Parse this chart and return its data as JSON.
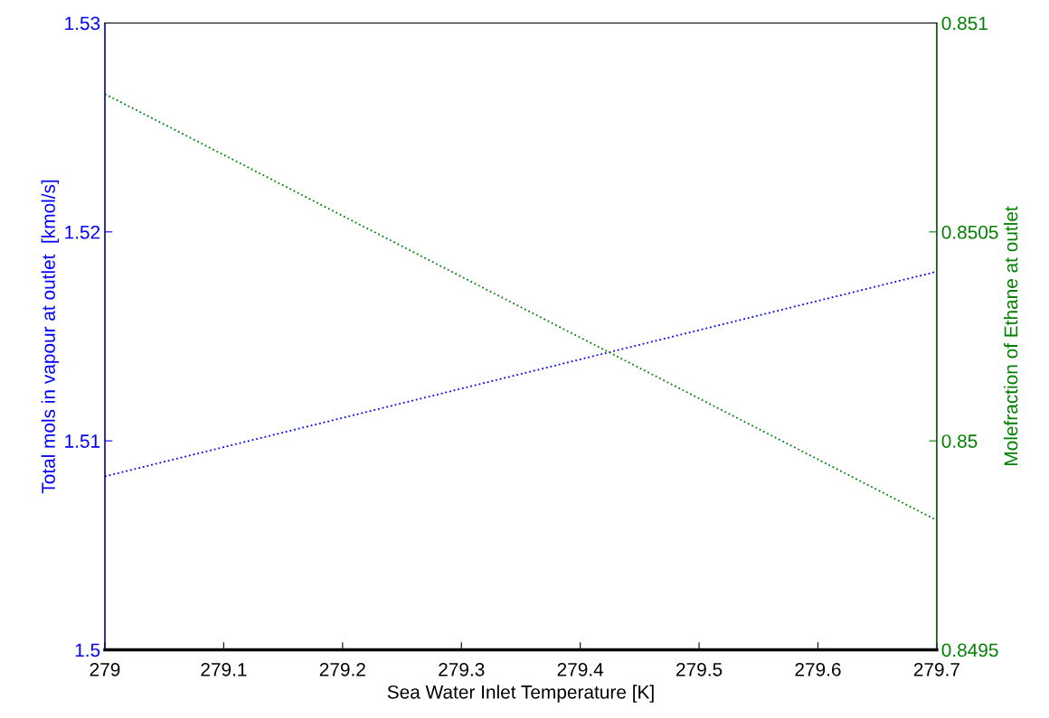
{
  "chart_data": {
    "type": "line",
    "xlabel": "Sea Water Inlet Temperature [K]",
    "ylabel": "Total mols in vapour at outlet  [kmol/s]",
    "y2label": "Molefraction of Ethane at outlet",
    "x": [
      279,
      279.7
    ],
    "series": [
      {
        "color": "#0000ff",
        "values": [
          1.5083,
          1.5181
        ],
        "line_style": "dotted"
      },
      {
        "color": "#008000",
        "values": [
          0.85083,
          0.84981
        ],
        "axis": "y2",
        "line_style": "dotted"
      }
    ],
    "xlim": [
      279,
      279.7
    ],
    "xticks": [
      279,
      279.1,
      279.2,
      279.3,
      279.4,
      279.5,
      279.6,
      279.7
    ],
    "ylim": [
      1.5,
      1.53
    ],
    "yticks": [
      1.5,
      1.51,
      1.52,
      1.53
    ],
    "y2lim": [
      0.8495,
      0.851
    ],
    "y2ticks": [
      0.8495,
      0.85,
      0.8505,
      0.851
    ],
    "grid": false,
    "legend": false,
    "marker": "none"
  }
}
